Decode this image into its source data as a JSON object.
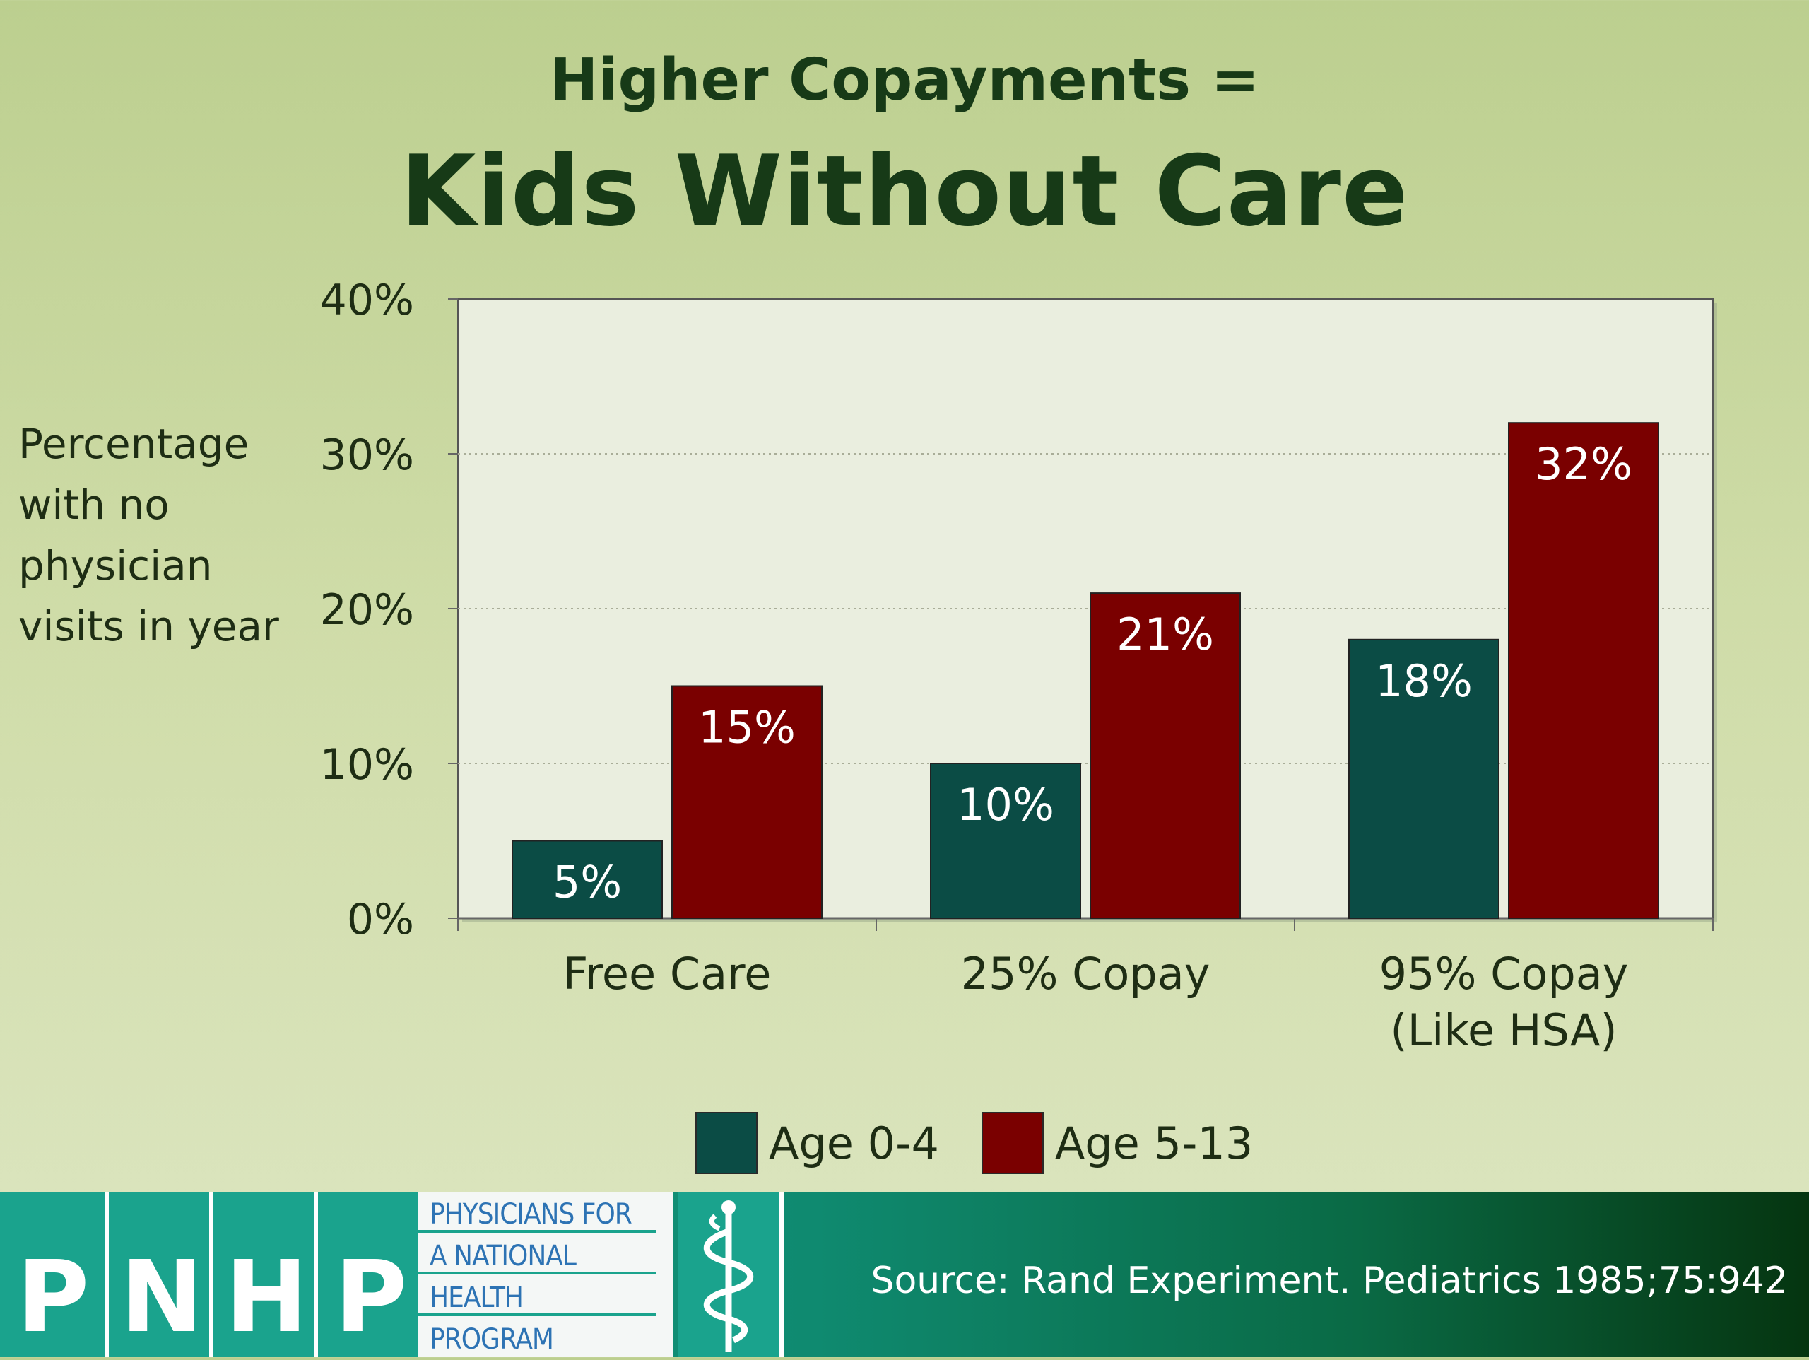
{
  "slide": {
    "subtitle": "Higher Copayments =",
    "title": "Kids Without Care",
    "ylabel_lines": [
      "Percentage",
      "with no",
      "physician",
      "visits in year"
    ]
  },
  "chart_data": {
    "type": "bar",
    "title": "",
    "xlabel": "",
    "ylabel": "Percentage with no physician visits in year",
    "categories": [
      [
        "Free Care"
      ],
      [
        "25% Copay"
      ],
      [
        "95% Copay",
        "(Like HSA)"
      ]
    ],
    "series": [
      {
        "name": "Age 0-4",
        "values": [
          5,
          10,
          18
        ],
        "labels": [
          "5%",
          "10%",
          "18%"
        ],
        "color": "#0b4c45"
      },
      {
        "name": "Age 5-13",
        "values": [
          15,
          21,
          32
        ],
        "labels": [
          "15%",
          "21%",
          "32%"
        ],
        "color": "#7a0000"
      }
    ],
    "ylim": [
      0,
      40
    ],
    "yticks": [
      0,
      10,
      20,
      30,
      40
    ],
    "ytick_labels": [
      "0%",
      "10%",
      "20%",
      "30%",
      "40%"
    ],
    "grid": "dotted horizontal",
    "legend": "bottom",
    "plot_background": "#eaeedf"
  },
  "legend": {
    "items": [
      {
        "label": "Age 0-4",
        "color": "#0b4c45"
      },
      {
        "label": "Age 5-13",
        "color": "#7a0000"
      }
    ]
  },
  "footer": {
    "logo_letters": [
      "P",
      "N",
      "H",
      "P"
    ],
    "logo_text_lines": [
      "PHYSICIANS FOR",
      "A NATIONAL",
      "HEALTH",
      "PROGRAM"
    ],
    "logo_icon": "caduceus-icon",
    "source": "Source: Rand Experiment. Pediatrics 1985;75:942"
  }
}
